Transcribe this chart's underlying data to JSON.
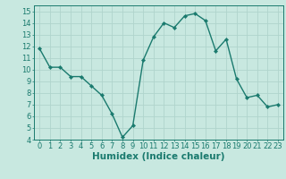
{
  "x": [
    0,
    1,
    2,
    3,
    4,
    5,
    6,
    7,
    8,
    9,
    10,
    11,
    12,
    13,
    14,
    15,
    16,
    17,
    18,
    19,
    20,
    21,
    22,
    23
  ],
  "y": [
    11.8,
    10.2,
    10.2,
    9.4,
    9.4,
    8.6,
    7.8,
    6.2,
    4.2,
    5.2,
    10.8,
    12.8,
    14.0,
    13.6,
    14.6,
    14.8,
    14.2,
    11.6,
    12.6,
    9.2,
    7.6,
    7.8,
    6.8,
    7.0
  ],
  "line_color": "#1a7a6e",
  "marker": "D",
  "marker_size": 2.2,
  "line_width": 1.0,
  "background_color": "#c8e8e0",
  "grid_color": "#b0d4cc",
  "xlabel": "Humidex (Indice chaleur)",
  "xlim": [
    -0.5,
    23.5
  ],
  "ylim": [
    4,
    15.5
  ],
  "yticks": [
    4,
    5,
    6,
    7,
    8,
    9,
    10,
    11,
    12,
    13,
    14,
    15
  ],
  "xticks": [
    0,
    1,
    2,
    3,
    4,
    5,
    6,
    7,
    8,
    9,
    10,
    11,
    12,
    13,
    14,
    15,
    16,
    17,
    18,
    19,
    20,
    21,
    22,
    23
  ],
  "tick_label_fontsize": 6.0,
  "xlabel_fontsize": 7.5,
  "tick_color": "#1a7a6e",
  "label_color": "#1a7a6e",
  "spine_color": "#1a7a6e"
}
